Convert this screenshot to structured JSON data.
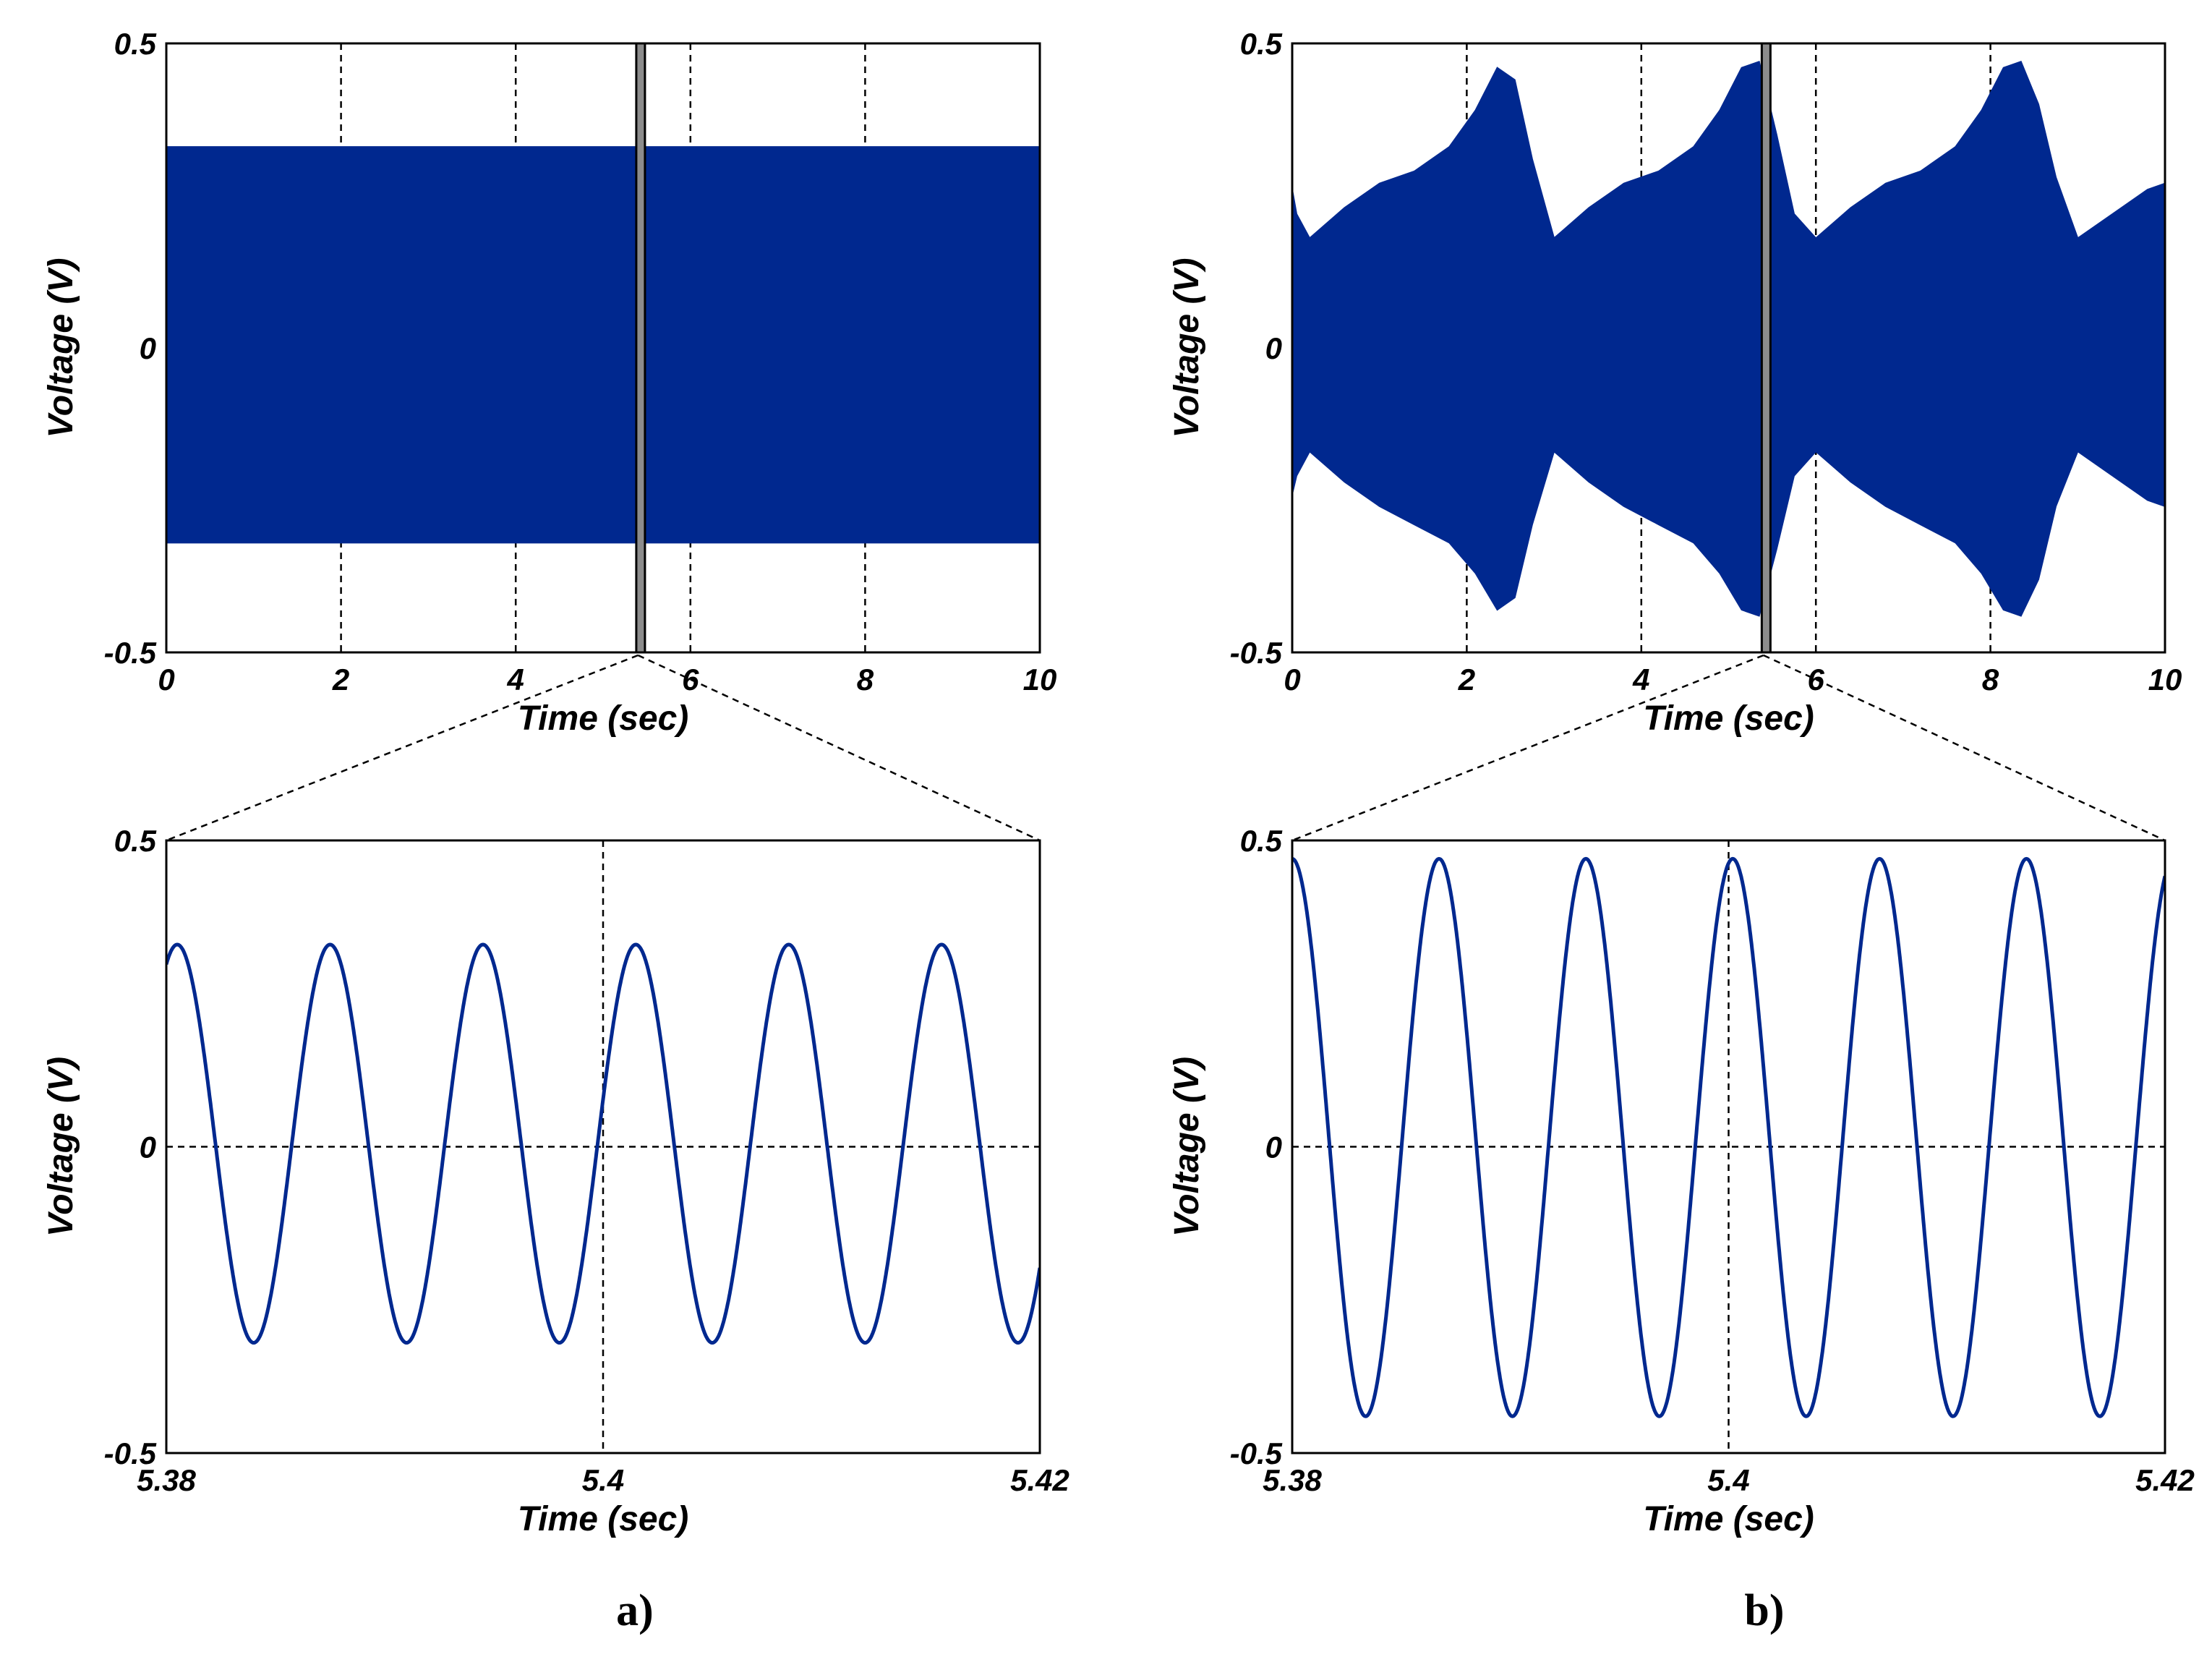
{
  "colors": {
    "signal": "#00288f",
    "frame": "#000000",
    "grid": "#000000",
    "marker_fill": "#8c8c8c"
  },
  "panel_labels": [
    "a)",
    "b)"
  ],
  "chart_data": [
    {
      "id": "a_overview",
      "type": "line",
      "panel": "a)",
      "xlabel": "Time (sec)",
      "ylabel": "Voltage (V)",
      "xlim": [
        0,
        10
      ],
      "ylim": [
        -0.5,
        0.5
      ],
      "xticks": [
        0,
        2,
        4,
        6,
        8,
        10
      ],
      "xtick_labels": [
        "0",
        "2",
        "4",
        "6",
        "8",
        "10"
      ],
      "yticks": [
        -0.5,
        0,
        0.5
      ],
      "ytick_labels": [
        "-0.5",
        "0",
        "0.5"
      ],
      "grid": "vertical dashed at x ticks",
      "series": [
        {
          "style": "dense oscillation shown as filled envelope",
          "envelope": {
            "x": [
              0,
              10
            ],
            "upper": [
              0.33,
              0.33
            ],
            "lower": [
              -0.32,
              -0.32
            ]
          }
        }
      ],
      "zoom_marker": {
        "x": [
          5.38,
          5.42
        ]
      }
    },
    {
      "id": "b_overview",
      "type": "line",
      "panel": "b)",
      "xlabel": "Time (sec)",
      "ylabel": "Voltage (V)",
      "xlim": [
        0,
        10
      ],
      "ylim": [
        -0.5,
        0.5
      ],
      "xticks": [
        0,
        2,
        4,
        6,
        8,
        10
      ],
      "xtick_labels": [
        "0",
        "2",
        "4",
        "6",
        "8",
        "10"
      ],
      "yticks": [
        -0.5,
        0,
        0.5
      ],
      "ytick_labels": [
        "-0.5",
        "0",
        "0.5"
      ],
      "grid": "vertical dashed at x ticks",
      "series": [
        {
          "style": "dense oscillation shown as filled envelope",
          "envelope": {
            "x": [
              0,
              0.05,
              0.2,
              0.6,
              1.0,
              1.4,
              1.8,
              2.1,
              2.35,
              2.55,
              2.75,
              3.0,
              3.4,
              3.8,
              4.2,
              4.6,
              4.9,
              5.15,
              5.35,
              5.55,
              5.75,
              6.0,
              6.4,
              6.8,
              7.2,
              7.6,
              7.9,
              8.15,
              8.35,
              8.55,
              8.75,
              9.0,
              9.4,
              9.8,
              10.0
            ],
            "upper": [
              0.26,
              0.22,
              0.18,
              0.23,
              0.27,
              0.29,
              0.33,
              0.39,
              0.46,
              0.44,
              0.31,
              0.18,
              0.23,
              0.27,
              0.29,
              0.33,
              0.39,
              0.46,
              0.47,
              0.35,
              0.22,
              0.18,
              0.23,
              0.27,
              0.29,
              0.33,
              0.39,
              0.46,
              0.47,
              0.4,
              0.28,
              0.18,
              0.22,
              0.26,
              0.27
            ],
            "lower": [
              -0.24,
              -0.21,
              -0.17,
              -0.22,
              -0.26,
              -0.29,
              -0.32,
              -0.37,
              -0.43,
              -0.41,
              -0.29,
              -0.17,
              -0.22,
              -0.26,
              -0.29,
              -0.32,
              -0.37,
              -0.43,
              -0.44,
              -0.33,
              -0.21,
              -0.17,
              -0.22,
              -0.26,
              -0.29,
              -0.32,
              -0.37,
              -0.43,
              -0.44,
              -0.38,
              -0.26,
              -0.17,
              -0.21,
              -0.25,
              -0.26
            ]
          }
        }
      ],
      "zoom_marker": {
        "x": [
          5.38,
          5.42
        ]
      }
    },
    {
      "id": "a_zoom",
      "type": "line",
      "panel": "a)",
      "xlabel": "Time (sec)",
      "ylabel": "Voltage (V)",
      "xlim": [
        5.38,
        5.42
      ],
      "ylim": [
        -0.5,
        0.5
      ],
      "xticks": [
        5.38,
        5.4,
        5.42
      ],
      "xtick_labels": [
        "5.38",
        "5.4",
        "5.42"
      ],
      "yticks": [
        -0.5,
        0,
        0.5
      ],
      "ytick_labels": [
        "-0.5",
        "0",
        "0.5"
      ],
      "grid": "dashed at x = 5.4 and y = 0",
      "series": [
        {
          "style": "sinusoid",
          "amplitude_max": 0.33,
          "amplitude_min": -0.32,
          "peak_times": [
            5.3805,
            5.3875,
            5.3945,
            5.4015,
            5.4085,
            5.4155
          ],
          "period": 0.007
        }
      ]
    },
    {
      "id": "b_zoom",
      "type": "line",
      "panel": "b)",
      "xlabel": "Time (sec)",
      "ylabel": "Voltage (V)",
      "xlim": [
        5.38,
        5.42
      ],
      "ylim": [
        -0.5,
        0.5
      ],
      "xticks": [
        5.38,
        5.4,
        5.42
      ],
      "xtick_labels": [
        "5.38",
        "5.4",
        "5.42"
      ],
      "yticks": [
        -0.5,
        0,
        0.5
      ],
      "ytick_labels": [
        "-0.5",
        "0",
        "0.5"
      ],
      "grid": "dashed at x = 5.4 and y = 0",
      "series": [
        {
          "style": "sinusoid",
          "amplitude_max": 0.47,
          "amplitude_min": -0.44,
          "peak_times": [
            5.38,
            5.3867,
            5.3935,
            5.4002,
            5.4069,
            5.4137
          ],
          "period": 0.00673
        }
      ]
    }
  ]
}
